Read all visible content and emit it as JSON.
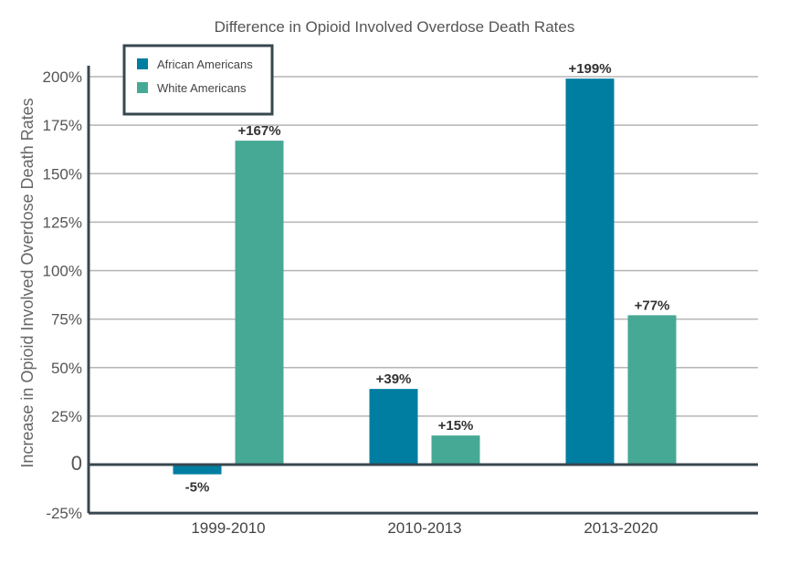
{
  "chart_data": {
    "type": "bar",
    "title": "Difference in Opioid Involved Overdose Death Rates",
    "ylabel": "Increase in Opioid Involved Overdose Death Rates",
    "xlabel": "",
    "categories": [
      "1999-2010",
      "2010-2013",
      "2013-2020"
    ],
    "series": [
      {
        "name": "African Americans",
        "color": "#007ea1",
        "values": [
          -5,
          39,
          199
        ],
        "labels": [
          "-5%",
          "+39%",
          "+199%"
        ]
      },
      {
        "name": "White Americans",
        "color": "#46a995",
        "values": [
          167,
          15,
          77
        ],
        "labels": [
          "+167%",
          "+15%",
          "+77%"
        ]
      }
    ],
    "ylim": [
      -25,
      200
    ],
    "yticks": [
      -25,
      0,
      25,
      50,
      75,
      100,
      125,
      150,
      175,
      200
    ],
    "ytick_labels": [
      "-25%",
      "0",
      "25%",
      "50%",
      "75%",
      "100%",
      "125%",
      "150%",
      "175%",
      "200%"
    ],
    "grid": true,
    "legend_position": "top-left"
  }
}
